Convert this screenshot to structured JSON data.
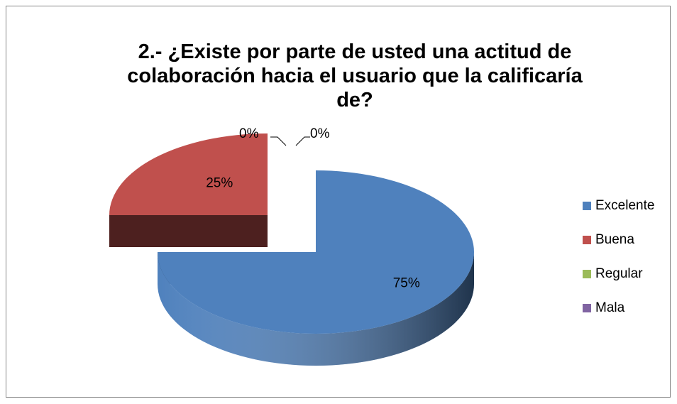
{
  "chart_data": {
    "type": "pie3d",
    "title": "2.- ¿Existe por parte de usted una actitud de colaboración hacia el usuario que la calificaría de?",
    "categories": [
      "Excelente",
      "Buena",
      "Regular",
      "Mala"
    ],
    "values": [
      75,
      25,
      0,
      0
    ],
    "value_labels": [
      "75%",
      "25%",
      "0%",
      "0%"
    ],
    "colors": [
      "#4f81bd",
      "#c0504d",
      "#9bbb59",
      "#8064a2"
    ],
    "legend": "right"
  }
}
